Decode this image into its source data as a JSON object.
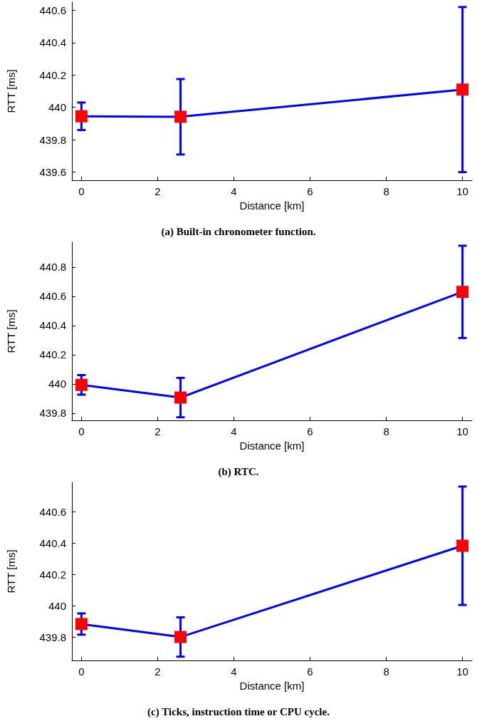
{
  "chart_data": [
    {
      "type": "line",
      "title": "(a) Built-in chronometer function.",
      "xlabel": "Distance [km]",
      "ylabel": "RTT [ms]",
      "marker": "square",
      "line_style": "solid",
      "xlim": [
        -0.25,
        10.25
      ],
      "xticks": [
        0,
        2,
        4,
        6,
        8,
        10
      ],
      "ylim": [
        439.55,
        440.65
      ],
      "yticks": [
        439.6,
        439.8,
        440,
        440.2,
        440.4,
        440.6
      ],
      "series": [
        {
          "color": "#0000ff",
          "colors": [
            "#ff0000",
            "#ff0000",
            "#ff0000"
          ],
          "x": [
            0,
            2.6,
            10
          ],
          "values": [
            439.945,
            439.942,
            440.11
          ],
          "errors": [
            0.085,
            0.233,
            0.51
          ]
        }
      ]
    },
    {
      "type": "line",
      "title": "(b) RTC.",
      "xlabel": "Distance [km]",
      "ylabel": "RTT [ms]",
      "marker": "square",
      "line_style": "solid",
      "xlim": [
        -0.25,
        10.25
      ],
      "xticks": [
        0,
        2,
        4,
        6,
        8,
        10
      ],
      "ylim": [
        439.75,
        440.97
      ],
      "yticks": [
        439.8,
        440,
        440.2,
        440.4,
        440.6,
        440.8
      ],
      "series": [
        {
          "color": "#0000ff",
          "colors": [
            "#ff0000",
            "#ff0000",
            "#ff0000"
          ],
          "x": [
            0,
            2.6,
            10
          ],
          "values": [
            439.993,
            439.906,
            440.63
          ],
          "errors": [
            0.067,
            0.135,
            0.316
          ]
        }
      ]
    },
    {
      "type": "line",
      "title": "(c) Ticks, instruction time or CPU cycle.",
      "xlabel": "Distance [km]",
      "ylabel": "RTT [ms]",
      "marker": "square",
      "line_style": "solid",
      "xlim": [
        -0.25,
        10.25
      ],
      "xticks": [
        0,
        2,
        4,
        6,
        8,
        10
      ],
      "ylim": [
        439.65,
        440.79
      ],
      "yticks": [
        439.8,
        440,
        440.2,
        440.4,
        440.6
      ],
      "series": [
        {
          "color": "#0000ff",
          "colors": [
            "#ff0000",
            "#ff0000",
            "#ff0000"
          ],
          "x": [
            0,
            2.6,
            10
          ],
          "values": [
            439.883,
            439.8,
            440.384
          ],
          "errors": [
            0.068,
            0.126,
            0.379
          ]
        }
      ]
    }
  ]
}
